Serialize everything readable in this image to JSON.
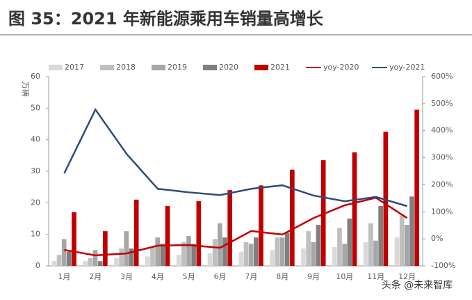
{
  "chart_data": {
    "type": "bar",
    "title": "图 35：2021 年新能源乘用车销量高增长",
    "y_label": "万辆",
    "watermark": "头条 @未来智库",
    "categories": [
      "1月",
      "2月",
      "3月",
      "4月",
      "5月",
      "6月",
      "7月",
      "8月",
      "9月",
      "10月",
      "11月",
      "12月"
    ],
    "ylim": [
      0,
      60
    ],
    "yticks": [
      0,
      10,
      20,
      30,
      40,
      50,
      60
    ],
    "y2lim": [
      -100,
      600
    ],
    "y2ticks": [
      {
        "value": -100,
        "label": "-100%"
      },
      {
        "value": 0,
        "label": "0%"
      },
      {
        "value": 100,
        "label": "100%"
      },
      {
        "value": 200,
        "label": "200%"
      },
      {
        "value": 300,
        "label": "300%"
      },
      {
        "value": 400,
        "label": "400%"
      },
      {
        "value": 500,
        "label": "500%"
      },
      {
        "value": 600,
        "label": "600%"
      }
    ],
    "series": [
      {
        "name": "2017",
        "color": "#d9d9d9",
        "values": [
          1.5,
          1.5,
          2.5,
          3,
          3.5,
          4,
          4.5,
          5,
          5.5,
          6,
          7.5,
          9
        ]
      },
      {
        "name": "2018",
        "color": "#bfbfbf",
        "values": [
          3.5,
          2.5,
          5.5,
          6,
          7.5,
          8.5,
          7.5,
          9,
          11,
          12,
          13.5,
          16
        ]
      },
      {
        "name": "2019",
        "color": "#a6a6a6",
        "values": [
          8.5,
          5,
          11,
          9,
          9.5,
          13.5,
          7,
          9,
          7.5,
          7,
          8,
          13
        ]
      },
      {
        "name": "2020",
        "color": "#7f7f7f",
        "values": [
          4.5,
          1.5,
          5.5,
          7,
          7,
          9,
          9,
          10.5,
          13,
          15,
          19,
          22
        ]
      },
      {
        "name": "2021",
        "color": "#c00000",
        "values": [
          17,
          11,
          21,
          19,
          20.5,
          24,
          25.5,
          30.5,
          33.5,
          36,
          42.5,
          49.5
        ]
      },
      {
        "name": "yoy-2020",
        "color": "#c00000",
        "axis": "y2",
        "values": [
          -41,
          -61,
          -54,
          -25,
          -23,
          -33,
          29,
          16,
          77,
          124,
          152,
          77
        ]
      },
      {
        "name": "yoy-2021",
        "color": "#2f4b7c",
        "axis": "y2",
        "values": [
          242,
          478,
          314,
          185,
          172,
          162,
          185,
          198,
          160,
          139,
          155,
          121
        ]
      }
    ]
  }
}
